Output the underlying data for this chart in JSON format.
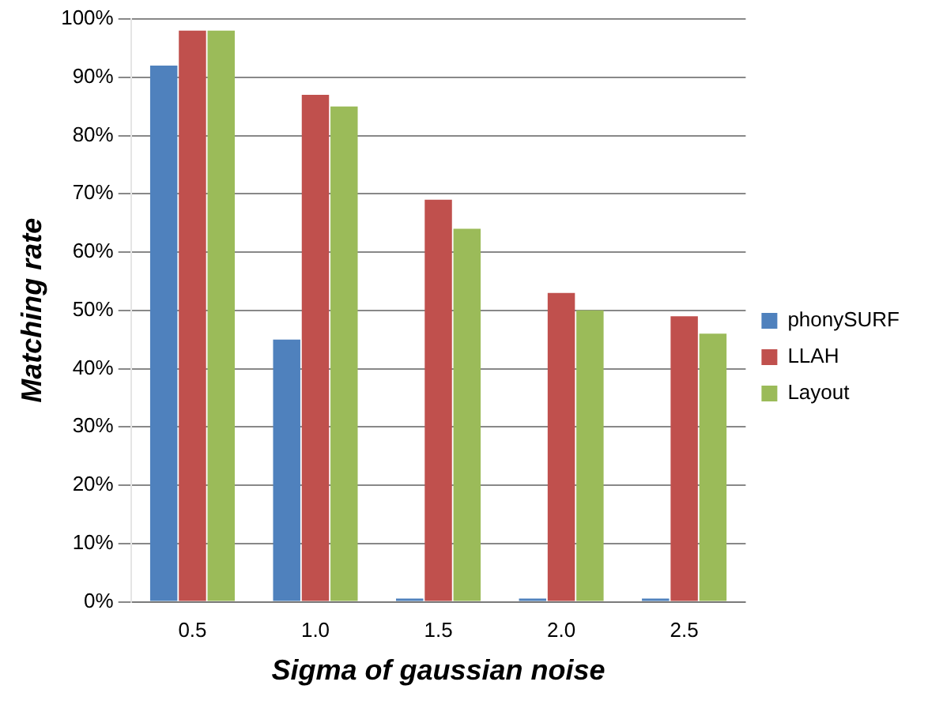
{
  "chart_data": {
    "type": "bar",
    "xlabel": "Sigma of gaussian noise",
    "ylabel": "Matching rate",
    "categories": [
      "0.5",
      "1.0",
      "1.5",
      "2.0",
      "2.5"
    ],
    "series": [
      {
        "name": "phonySURF",
        "color": "#4f81bd",
        "values": [
          92,
          45,
          0,
          0,
          0
        ]
      },
      {
        "name": "LLAH",
        "color": "#c0504d",
        "values": [
          98,
          87,
          69,
          53,
          49
        ]
      },
      {
        "name": "Layout",
        "color": "#9bbb59",
        "values": [
          98,
          85,
          64,
          50,
          46
        ]
      }
    ],
    "ylim": [
      0,
      100
    ],
    "yticks": [
      {
        "value": 0,
        "label": "0%"
      },
      {
        "value": 10,
        "label": "10%"
      },
      {
        "value": 20,
        "label": "20%"
      },
      {
        "value": 30,
        "label": "30%"
      },
      {
        "value": 40,
        "label": "40%"
      },
      {
        "value": 50,
        "label": "50%"
      },
      {
        "value": 60,
        "label": "60%"
      },
      {
        "value": 70,
        "label": "70%"
      },
      {
        "value": 80,
        "label": "80%"
      },
      {
        "value": 90,
        "label": "90%"
      },
      {
        "value": 100,
        "label": "100%"
      }
    ],
    "grid": "y",
    "legend": "right"
  }
}
